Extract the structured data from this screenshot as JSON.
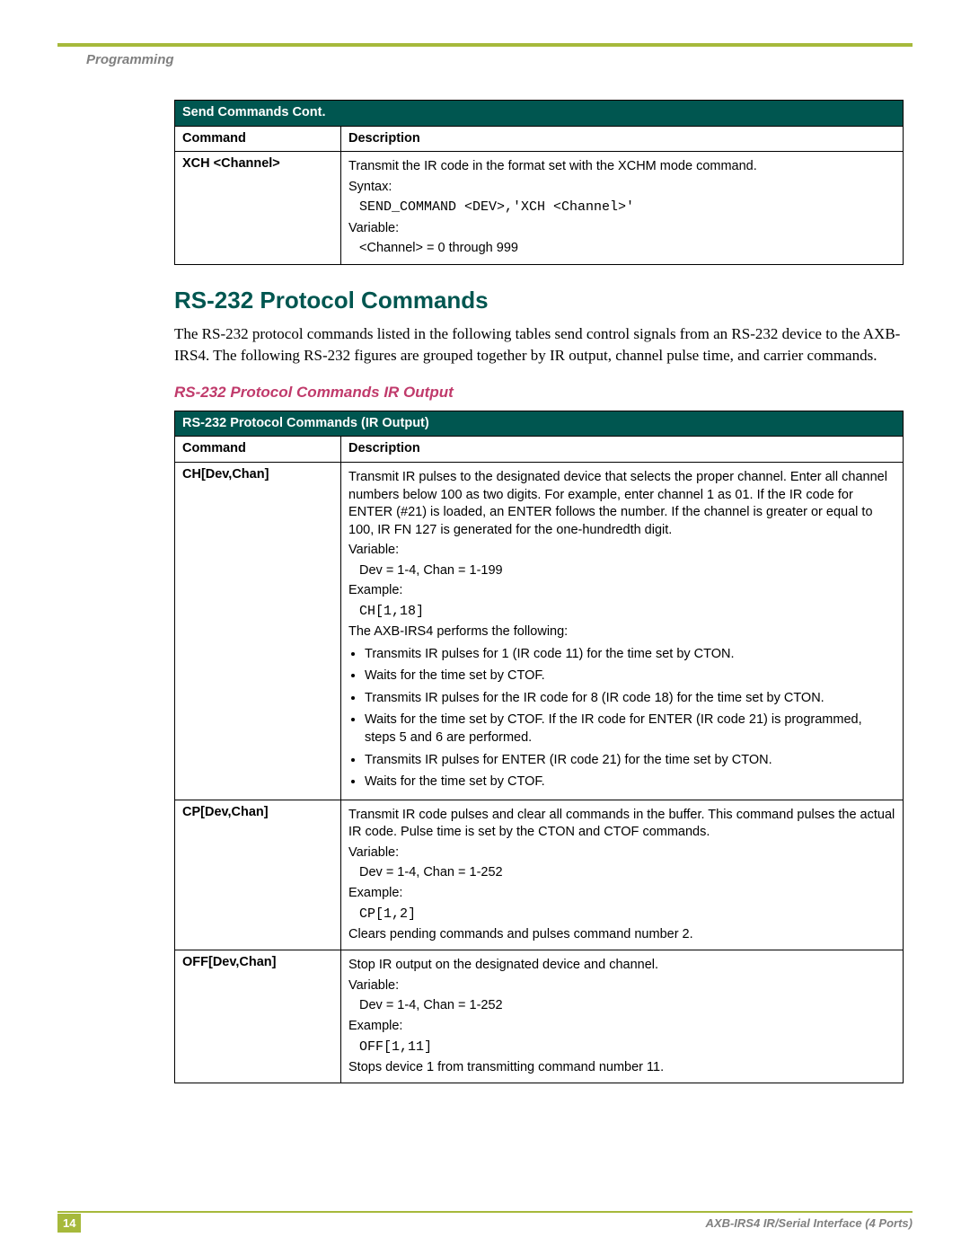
{
  "colors": {
    "accent_green": "#a6b93b",
    "teal": "#005650",
    "magenta": "#c03a6b",
    "gray_text": "#808080"
  },
  "header": {
    "section": "Programming"
  },
  "table1": {
    "title": "Send Commands Cont.",
    "col1": "Command",
    "col2": "Description",
    "row": {
      "cmd": "XCH <Channel>",
      "l1": "Transmit the IR code in the format set with the XCHM mode command.",
      "l2": "Syntax:",
      "l3": "SEND_COMMAND <DEV>,'XCH <Channel>'",
      "l4": "Variable:",
      "l5": "<Channel> = 0 through 999"
    }
  },
  "section": {
    "heading": "RS-232 Protocol Commands",
    "body": "The RS-232 protocol commands listed in the following tables send control signals from an RS-232 device to the AXB-IRS4. The following RS-232 figures are grouped together by IR output, channel pulse time, and carrier commands.",
    "subhead": "RS-232 Protocol Commands IR Output"
  },
  "table2": {
    "title": "RS-232 Protocol Commands (IR Output)",
    "col1": "Command",
    "col2": "Description",
    "r1": {
      "cmd": "CH[Dev,Chan]",
      "p1": "Transmit IR pulses to the designated device that selects the proper channel. Enter all channel numbers below 100 as two digits. For example, enter channel 1 as 01. If the IR code for ENTER (#21) is loaded, an ENTER follows the number. If the channel is greater or equal to 100, IR FN 127 is generated for the one-hundredth digit.",
      "p2": "Variable:",
      "p3": "Dev = 1-4, Chan = 1-199",
      "p4": "Example:",
      "p5": "CH[1,18]",
      "p6": "The AXB-IRS4 performs the following:",
      "b1": "Transmits IR pulses for 1 (IR code 11) for the time set by CTON.",
      "b2": "Waits for the time set by CTOF.",
      "b3": "Transmits IR pulses for the IR code for 8 (IR code 18) for the time set by CTON.",
      "b4": "Waits for the time set by CTOF. If the IR code for ENTER (IR code 21) is programmed, steps 5 and 6 are performed.",
      "b5": "Transmits IR pulses for ENTER (IR code 21) for the time set by CTON.",
      "b6": "Waits for the time set by CTOF."
    },
    "r2": {
      "cmd": "CP[Dev,Chan]",
      "p1": "Transmit IR code pulses and clear all commands in the buffer. This command pulses the actual IR code. Pulse time is set by the CTON and CTOF commands.",
      "p2": "Variable:",
      "p3": "Dev = 1-4, Chan = 1-252",
      "p4": "Example:",
      "p5": "CP[1,2]",
      "p6": "Clears pending commands and pulses command number 2."
    },
    "r3": {
      "cmd": "OFF[Dev,Chan]",
      "p1": "Stop IR output on the designated device and channel.",
      "p2": "Variable:",
      "p3": "Dev = 1-4, Chan = 1-252",
      "p4": "Example:",
      "p5": "OFF[1,11]",
      "p6": "Stops device 1 from transmitting command number 11."
    }
  },
  "footer": {
    "page": "14",
    "doc": "AXB-IRS4 IR/Serial Interface (4 Ports)"
  }
}
